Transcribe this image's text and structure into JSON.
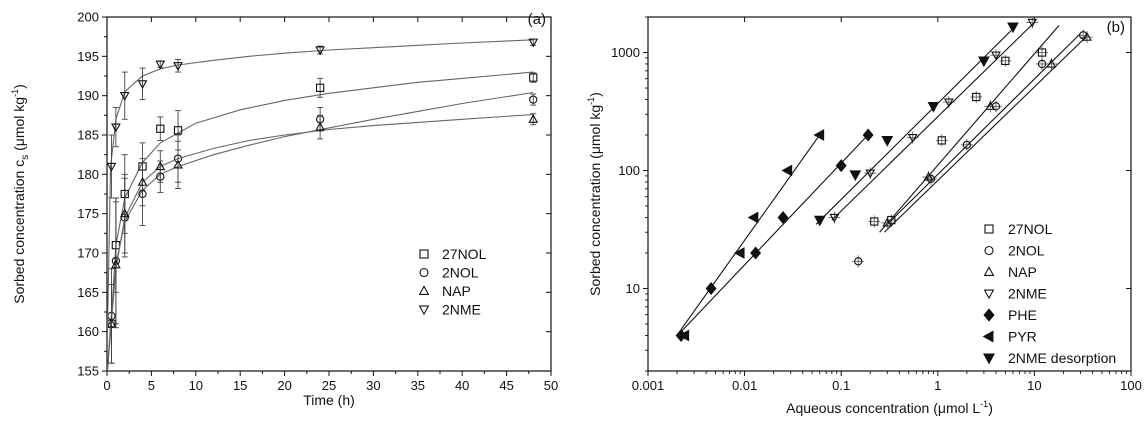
{
  "chart_data": [
    {
      "type": "scatter",
      "panel_label": "(a)",
      "xlabel": "Time (h)",
      "ylabel_main": "Sorbed concentration c",
      "ylabel_sub": "s",
      "ylabel_unit": "(μmol kg",
      "ylabel_exp": "-1",
      "ylabel_close": ")",
      "xlim": [
        0,
        50
      ],
      "ylim": [
        155,
        200
      ],
      "x_ticks": [
        0,
        5,
        10,
        15,
        20,
        25,
        30,
        35,
        40,
        45,
        50
      ],
      "y_ticks": [
        155,
        160,
        165,
        170,
        175,
        180,
        185,
        190,
        195,
        200
      ],
      "legend_position": "bottom-right",
      "series": [
        {
          "name": "27NOL",
          "marker": "square",
          "points": [
            [
              0.5,
              161
            ],
            [
              1,
              171
            ],
            [
              2,
              177.5
            ],
            [
              4,
              181
            ],
            [
              6,
              185.8
            ],
            [
              8,
              185.6
            ],
            [
              24,
              191
            ],
            [
              48,
              192.3
            ]
          ],
          "errors": [
            5,
            6,
            5,
            3,
            1.5,
            2.5,
            1.2,
            0.6
          ],
          "fit": [
            [
              0.05,
              155
            ],
            [
              0.4,
              160
            ],
            [
              1,
              171
            ],
            [
              2,
              177
            ],
            [
              4,
              181.5
            ],
            [
              6,
              184
            ],
            [
              10,
              186.5
            ],
            [
              15,
              188.2
            ],
            [
              20,
              189.4
            ],
            [
              25,
              190.3
            ],
            [
              30,
              191
            ],
            [
              35,
              191.7
            ],
            [
              40,
              192.2
            ],
            [
              48,
              193
            ]
          ]
        },
        {
          "name": "2NOL",
          "marker": "circle",
          "points": [
            [
              0.5,
              162
            ],
            [
              1,
              169
            ],
            [
              2,
              174.5
            ],
            [
              4,
              177.5
            ],
            [
              6,
              179.7
            ],
            [
              8,
              182
            ],
            [
              24,
              187
            ],
            [
              48,
              189.5
            ]
          ],
          "errors": [
            6,
            8,
            5,
            4,
            2,
            3,
            1.5,
            0.7
          ],
          "fit": [
            [
              0.05,
              155
            ],
            [
              0.4,
              161
            ],
            [
              1,
              168.5
            ],
            [
              2,
              174
            ],
            [
              4,
              178
            ],
            [
              6,
              180
            ],
            [
              8,
              181
            ],
            [
              12,
              182.5
            ],
            [
              16,
              183.7
            ],
            [
              20,
              184.8
            ],
            [
              25,
              185.9
            ],
            [
              30,
              187
            ],
            [
              35,
              188
            ],
            [
              40,
              189
            ],
            [
              48,
              190.4
            ]
          ]
        },
        {
          "name": "NAP",
          "marker": "triangle-up",
          "points": [
            [
              0.5,
              161
            ],
            [
              1,
              168.5
            ],
            [
              2,
              175
            ],
            [
              4,
              179
            ],
            [
              6,
              181
            ],
            [
              8,
              181.2
            ],
            [
              24,
              186
            ],
            [
              48,
              187
            ]
          ],
          "errors": [
            5,
            8,
            5,
            3,
            2,
            3,
            1.5,
            0.7
          ],
          "fit": [
            [
              0.05,
              155
            ],
            [
              0.4,
              160
            ],
            [
              1,
              168
            ],
            [
              2,
              174.5
            ],
            [
              4,
              179
            ],
            [
              6,
              181
            ],
            [
              8,
              182
            ],
            [
              12,
              183.3
            ],
            [
              16,
              184.3
            ],
            [
              20,
              185
            ],
            [
              25,
              185.7
            ],
            [
              30,
              186.2
            ],
            [
              35,
              186.6
            ],
            [
              40,
              187
            ],
            [
              48,
              187.6
            ]
          ]
        },
        {
          "name": "2NME",
          "marker": "triangle-down",
          "points": [
            [
              0.5,
              181
            ],
            [
              1,
              186
            ],
            [
              2,
              190
            ],
            [
              4,
              191.5
            ],
            [
              6,
              194
            ],
            [
              8,
              193.8
            ],
            [
              24,
              195.8
            ],
            [
              48,
              196.8
            ]
          ],
          "errors": [
            4,
            2.5,
            3,
            2,
            0.4,
            0.8,
            0.5,
            0.4
          ],
          "fit": [
            [
              0.05,
              160
            ],
            [
              0.4,
              181
            ],
            [
              1,
              187
            ],
            [
              2,
              190.5
            ],
            [
              4,
              192.5
            ],
            [
              6,
              193.4
            ],
            [
              8,
              193.9
            ],
            [
              12,
              194.5
            ],
            [
              16,
              195
            ],
            [
              20,
              195.4
            ],
            [
              25,
              195.8
            ],
            [
              30,
              196.1
            ],
            [
              35,
              196.4
            ],
            [
              40,
              196.7
            ],
            [
              48,
              197.1
            ]
          ]
        }
      ]
    },
    {
      "type": "scatter",
      "panel_label": "(b)",
      "xlabel_main": "Aqueous concentration (μmol L",
      "xlabel_exp": "-1",
      "xlabel_close": ")",
      "ylabel_main": "Sorbed concentration (μmol kg",
      "ylabel_exp": "-1",
      "ylabel_close": ")",
      "x_scale": "log",
      "y_scale": "log",
      "xlim": [
        0.001,
        100
      ],
      "ylim": [
        2,
        2000
      ],
      "x_ticks": [
        0.001,
        0.01,
        0.1,
        1,
        10,
        100
      ],
      "x_tick_labels": [
        "0.001",
        "0.01",
        "0.1",
        "1",
        "10",
        "100"
      ],
      "y_ticks": [
        10,
        100,
        1000
      ],
      "y_tick_labels": [
        "10",
        "100",
        "1000"
      ],
      "legend_position": "bottom-right",
      "series": [
        {
          "name": "27NOL",
          "marker": "square",
          "points": [
            [
              0.22,
              37
            ],
            [
              0.33,
              38
            ],
            [
              1.1,
              180
            ],
            [
              2.5,
              420
            ],
            [
              5,
              850
            ],
            [
              12,
              1000
            ]
          ],
          "line": [
            [
              0.25,
              30
            ],
            [
              18,
              1700
            ]
          ]
        },
        {
          "name": "2NOL",
          "marker": "circle",
          "points": [
            [
              0.15,
              17
            ],
            [
              0.85,
              85
            ],
            [
              2,
              165
            ],
            [
              4,
              350
            ],
            [
              12,
              800
            ],
            [
              32,
              1400
            ]
          ],
          "line": [
            [
              0.3,
              35
            ],
            [
              30,
              1450
            ]
          ]
        },
        {
          "name": "NAP",
          "marker": "triangle-up",
          "points": [
            [
              0.3,
              36
            ],
            [
              0.8,
              88
            ],
            [
              3.5,
              350
            ],
            [
              15,
              800
            ],
            [
              35,
              1350
            ]
          ],
          "line": [
            [
              0.28,
              30
            ],
            [
              35,
              1380
            ]
          ]
        },
        {
          "name": "2NME",
          "marker": "triangle-down",
          "points": [
            [
              0.085,
              40
            ],
            [
              0.2,
              95
            ],
            [
              0.55,
              190
            ],
            [
              1.3,
              380
            ],
            [
              4,
              950
            ],
            [
              9.5,
              1800
            ]
          ],
          "line": [
            [
              0.08,
              38
            ],
            [
              10,
              1800
            ]
          ]
        },
        {
          "name": "PHE",
          "marker": "diamond-filled",
          "points": [
            [
              0.0022,
              4
            ],
            [
              0.0045,
              10
            ],
            [
              0.013,
              20
            ],
            [
              0.025,
              40
            ],
            [
              0.1,
              110
            ],
            [
              0.19,
              200
            ]
          ],
          "line": [
            [
              0.0022,
              4.3
            ],
            [
              0.2,
              210
            ]
          ]
        },
        {
          "name": "PYR",
          "marker": "triangle-left-filled",
          "points": [
            [
              0.0024,
              4
            ],
            [
              0.009,
              20
            ],
            [
              0.0125,
              40
            ],
            [
              0.028,
              100
            ],
            [
              0.06,
              200
            ]
          ],
          "line": [
            [
              0.0022,
              4.5
            ],
            [
              0.065,
              220
            ]
          ]
        },
        {
          "name": "2NME desorption",
          "marker": "triangle-down-filled",
          "points": [
            [
              0.06,
              38
            ],
            [
              0.14,
              92
            ],
            [
              0.3,
              180
            ],
            [
              0.9,
              350
            ],
            [
              3,
              850
            ],
            [
              6,
              1650
            ]
          ],
          "line": [
            [
              0.055,
              35
            ],
            [
              6.5,
              1700
            ]
          ]
        }
      ]
    }
  ]
}
